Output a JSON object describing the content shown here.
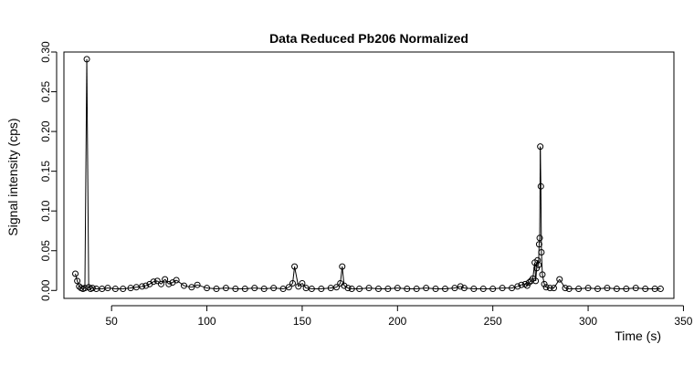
{
  "chart_data": {
    "type": "scatter",
    "title": "Data Reduced Pb206 Normalized",
    "xlabel": "Time (s)",
    "ylabel": "Signal intensity (cps)",
    "xlim": [
      25,
      345
    ],
    "ylim": [
      -0.01,
      0.3
    ],
    "x_ticks": [
      50,
      100,
      150,
      200,
      250,
      300,
      350
    ],
    "y_ticks": [
      0.0,
      0.05,
      0.1,
      0.15,
      0.2,
      0.25,
      0.3
    ],
    "x_tick_labels": [
      "50",
      "100",
      "150",
      "200",
      "250",
      "300",
      "350"
    ],
    "y_tick_labels": [
      "0.00",
      "0.05",
      "0.10",
      "0.15",
      "0.20",
      "0.25",
      "0.30"
    ],
    "grid": false,
    "legend": "none",
    "marker": "open-circle",
    "connect_points": true,
    "series": [
      {
        "x": [
          31,
          32,
          33,
          34,
          35,
          36,
          37,
          38,
          39,
          40,
          42,
          45,
          48,
          52,
          56,
          60,
          63,
          66,
          68,
          70,
          72,
          74,
          76,
          78,
          80,
          82,
          84,
          88,
          92,
          95,
          100,
          105,
          110,
          115,
          120,
          125,
          130,
          135,
          140,
          143,
          145,
          146,
          148,
          150,
          152,
          155,
          160,
          165,
          168,
          170,
          171,
          172,
          174,
          176,
          180,
          185,
          190,
          195,
          200,
          205,
          210,
          215,
          220,
          225,
          230,
          233,
          235,
          240,
          245,
          250,
          255,
          260,
          263,
          265,
          267,
          268,
          269,
          270,
          271,
          272,
          272.5,
          273,
          273.5,
          274,
          274.3,
          274.6,
          274.9,
          275.2,
          275.5,
          276,
          277,
          278,
          280,
          282,
          285,
          288,
          290,
          295,
          300,
          305,
          310,
          315,
          320,
          325,
          330,
          335,
          338
        ],
        "y": [
          0.021,
          0.012,
          0.005,
          0.003,
          0.002,
          0.003,
          0.291,
          0.004,
          0.002,
          0.003,
          0.002,
          0.002,
          0.003,
          0.002,
          0.002,
          0.003,
          0.004,
          0.005,
          0.006,
          0.008,
          0.011,
          0.012,
          0.008,
          0.014,
          0.008,
          0.01,
          0.013,
          0.006,
          0.004,
          0.007,
          0.003,
          0.002,
          0.003,
          0.002,
          0.002,
          0.003,
          0.002,
          0.003,
          0.002,
          0.004,
          0.009,
          0.03,
          0.005,
          0.009,
          0.003,
          0.002,
          0.002,
          0.003,
          0.004,
          0.009,
          0.03,
          0.006,
          0.003,
          0.002,
          0.002,
          0.003,
          0.002,
          0.002,
          0.003,
          0.002,
          0.002,
          0.003,
          0.002,
          0.002,
          0.003,
          0.005,
          0.003,
          0.002,
          0.002,
          0.002,
          0.003,
          0.003,
          0.005,
          0.007,
          0.008,
          0.006,
          0.01,
          0.012,
          0.015,
          0.035,
          0.012,
          0.028,
          0.038,
          0.032,
          0.058,
          0.066,
          0.181,
          0.131,
          0.048,
          0.02,
          0.008,
          0.004,
          0.003,
          0.003,
          0.014,
          0.003,
          0.002,
          0.002,
          0.003,
          0.002,
          0.003,
          0.002,
          0.002,
          0.003,
          0.002,
          0.002,
          0.002
        ]
      }
    ]
  }
}
